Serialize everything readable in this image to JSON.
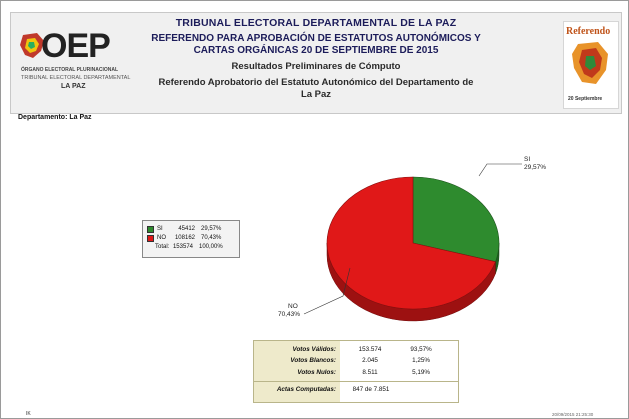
{
  "header": {
    "title_line1": "TRIBUNAL ELECTORAL DEPARTAMENTAL DE LA PAZ",
    "title_line2a": "REFERENDO PARA APROBACIÓN DE ESTATUTOS AUTONÓMICOS Y",
    "title_line2b": "CARTAS ORGÁNICAS 20  DE SEPTIEMBRE  DE 2015",
    "subtitle": "Resultados Preliminares de Cómputo",
    "referendum_line1": "Referendo Aprobatorio del Estatuto Autonómico del Departamento de",
    "referendum_line2": "La Paz"
  },
  "logo_left": {
    "brand": "OEP",
    "line1": "ÓRGANO ELECTORAL PLURINACIONAL",
    "line2": "TRIBUNAL ELECTORAL DEPARTAMENTAL",
    "line3": "LA PAZ"
  },
  "logo_right": {
    "word": "Referendo",
    "date": "20 Septiembre"
  },
  "department_label": "Departamento: La Paz",
  "legend": {
    "rows": [
      {
        "name": "SI",
        "votes": "45412",
        "pct": "29,57%",
        "color": "#2e8b2e"
      },
      {
        "name": "NO",
        "votes": "108162",
        "pct": "70,43%",
        "color": "#e01818"
      }
    ],
    "total_label": "Total:",
    "total_votes": "153574",
    "total_pct": "100,00%"
  },
  "chart_data": {
    "type": "pie",
    "categories": [
      "SI",
      "NO"
    ],
    "values": [
      29.57,
      70.43
    ],
    "colors": [
      "#2e8b2e",
      "#e01818"
    ],
    "labels": [
      {
        "name": "SI",
        "pct": "29,57%"
      },
      {
        "name": "NO",
        "pct": "70,43%"
      }
    ]
  },
  "summary": {
    "rows": [
      {
        "label": "Votos Válidos:",
        "value": "153.574",
        "pct": "93,57%"
      },
      {
        "label": "Votos Blancos:",
        "value": "2.045",
        "pct": "1,25%"
      },
      {
        "label": "Votos Nulos:",
        "value": "8.511",
        "pct": "5,19%"
      }
    ],
    "actas_label": "Actas Computadas:",
    "actas_value": "847 de 7.851"
  },
  "footer": {
    "left": "IK",
    "right": "20/09/2015 21:25:30"
  }
}
